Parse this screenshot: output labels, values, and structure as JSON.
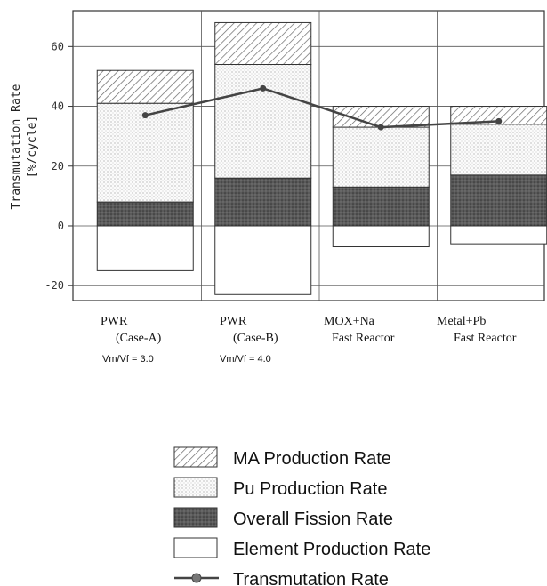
{
  "chart_data": {
    "type": "bar",
    "ylabel": "Transmutation Rate",
    "yunit": "[%/cycle]",
    "ylim": [
      -25,
      72
    ],
    "yticks": [
      -20,
      0,
      20,
      40,
      60
    ],
    "categories": [
      {
        "line1": "PWR",
        "line2": "(Case-A)",
        "sub": "Vm/Vf = 3.0"
      },
      {
        "line1": "PWR",
        "line2": "(Case-B)",
        "sub": "Vm/Vf = 4.0"
      },
      {
        "line1": "MOX+Na",
        "line2": "Fast  Reactor",
        "sub": ""
      },
      {
        "line1": "Metal+Pb",
        "line2": "Fast  Reactor",
        "sub": ""
      }
    ],
    "series": [
      {
        "name": "MA Production Rate",
        "key": "ma",
        "values": [
          11,
          14,
          7,
          6
        ]
      },
      {
        "name": "Pu Production Rate",
        "key": "pu",
        "values": [
          33,
          38,
          20,
          17
        ]
      },
      {
        "name": "Overall Fission Rate",
        "key": "fission",
        "values": [
          8,
          16,
          13,
          17
        ]
      },
      {
        "name": "Element Production Rate",
        "key": "element",
        "values": [
          -15,
          -23,
          -7,
          -6
        ]
      },
      {
        "name": "Transmutation Rate",
        "key": "transmutation",
        "values": [
          37,
          46,
          33,
          35
        ]
      }
    ],
    "grid": true
  },
  "legend": {
    "items": [
      {
        "label": "MA Production Rate",
        "key": "ma"
      },
      {
        "label": "Pu Production Rate",
        "key": "pu"
      },
      {
        "label": "Overall Fission Rate",
        "key": "fission"
      },
      {
        "label": "Element Production Rate",
        "key": "element"
      },
      {
        "label": "Transmutation Rate",
        "key": "transmutation"
      }
    ]
  }
}
